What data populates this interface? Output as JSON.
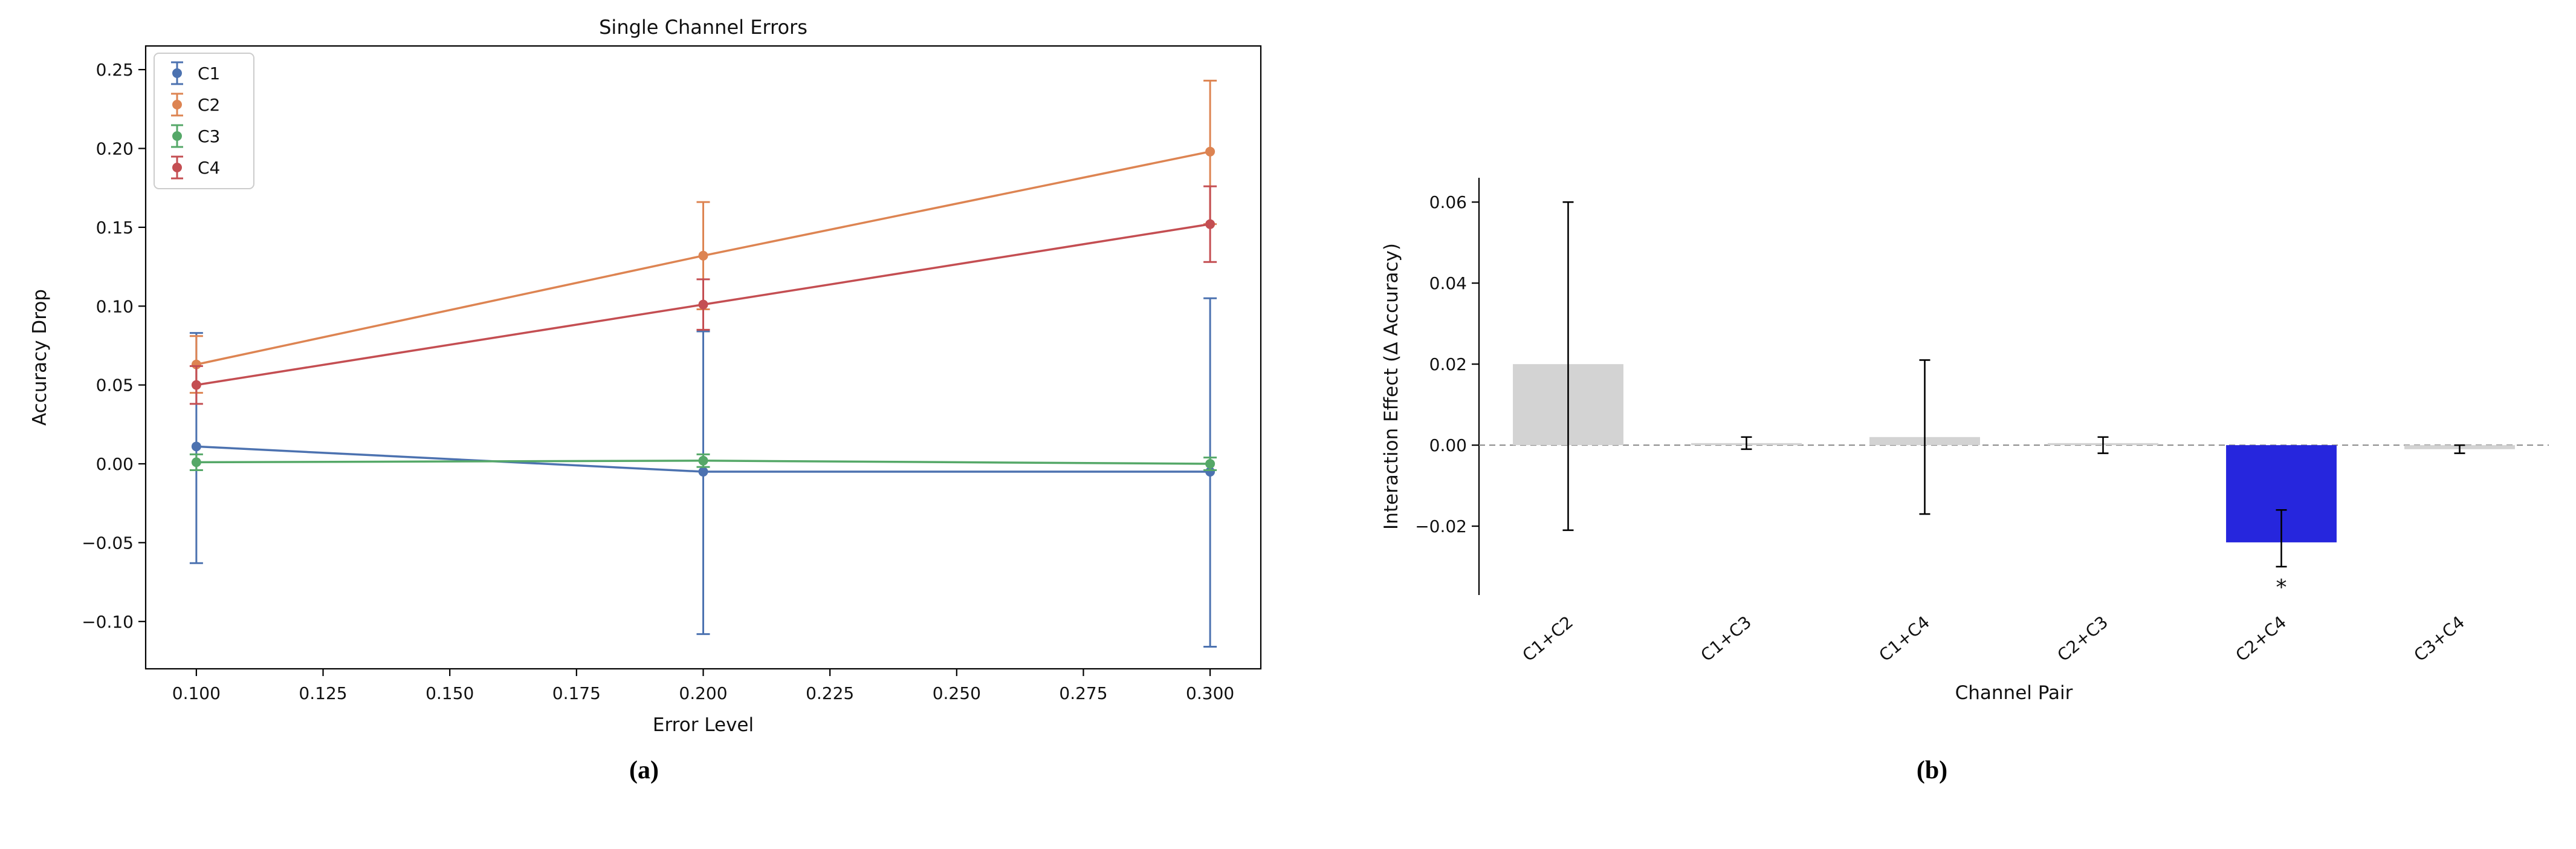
{
  "page": {
    "background": "#ffffff",
    "captions": {
      "a": "(a)",
      "b": "(b)"
    }
  },
  "chart_data": [
    {
      "id": "single-channel-errors",
      "type": "line",
      "title": "Single Channel Errors",
      "xlabel": "Error Level",
      "ylabel": "Accuracy Drop",
      "x": [
        0.1,
        0.2,
        0.3
      ],
      "xlim": [
        0.09,
        0.31
      ],
      "ylim": [
        -0.13,
        0.265
      ],
      "xticks": [
        0.1,
        0.125,
        0.15,
        0.175,
        0.2,
        0.225,
        0.25,
        0.275,
        0.3
      ],
      "xtick_labels": [
        "0.100",
        "0.125",
        "0.150",
        "0.175",
        "0.200",
        "0.225",
        "0.250",
        "0.275",
        "0.300"
      ],
      "yticks": [
        -0.1,
        -0.05,
        0.0,
        0.05,
        0.1,
        0.15,
        0.2,
        0.25
      ],
      "ytick_labels": [
        "−0.10",
        "−0.05",
        "0.00",
        "0.05",
        "0.10",
        "0.15",
        "0.20",
        "0.25"
      ],
      "legend_position": "upper left",
      "grid": false,
      "series": [
        {
          "name": "C1",
          "color": "#4C72B0",
          "values": [
            0.011,
            -0.005,
            -0.005
          ],
          "err_low": [
            -0.063,
            -0.108,
            -0.116
          ],
          "err_high": [
            0.083,
            0.084,
            0.105
          ]
        },
        {
          "name": "C2",
          "color": "#DD8452",
          "values": [
            0.063,
            0.132,
            0.198
          ],
          "err_low": [
            0.045,
            0.098,
            0.152
          ],
          "err_high": [
            0.081,
            0.166,
            0.243
          ]
        },
        {
          "name": "C3",
          "color": "#55A868",
          "values": [
            0.001,
            0.002,
            0.0
          ],
          "err_low": [
            -0.004,
            -0.002,
            -0.004
          ],
          "err_high": [
            0.006,
            0.006,
            0.004
          ]
        },
        {
          "name": "C4",
          "color": "#C44E52",
          "values": [
            0.05,
            0.101,
            0.152
          ],
          "err_low": [
            0.038,
            0.085,
            0.128
          ],
          "err_high": [
            0.062,
            0.117,
            0.176
          ]
        }
      ]
    },
    {
      "id": "interaction-effects",
      "type": "bar",
      "title": "",
      "xlabel": "Channel Pair",
      "ylabel": "Interaction Effect (Δ Accuracy)",
      "categories": [
        "C1+C2",
        "C1+C3",
        "C1+C4",
        "C2+C3",
        "C2+C4",
        "C3+C4"
      ],
      "values": [
        0.02,
        0.0005,
        0.002,
        0.0005,
        -0.024,
        -0.001
      ],
      "err_low": [
        -0.021,
        -0.001,
        -0.017,
        -0.002,
        -0.03,
        -0.002
      ],
      "err_high": [
        0.06,
        0.002,
        0.021,
        0.002,
        -0.016,
        0.0
      ],
      "colors": [
        "#d3d3d3",
        "#d3d3d3",
        "#d3d3d3",
        "#d3d3d3",
        "#2626dd",
        "#d3d3d3"
      ],
      "significance": [
        "",
        "",
        "",
        "",
        "*",
        ""
      ],
      "ylim": [
        -0.037,
        0.066
      ],
      "yticks": [
        -0.02,
        0.0,
        0.02,
        0.04,
        0.06
      ],
      "ytick_labels": [
        "−0.02",
        "0.00",
        "0.02",
        "0.04",
        "0.06"
      ],
      "zero_line": {
        "style": "dashed",
        "color": "#888888"
      },
      "error_bar_color": "#000000"
    }
  ]
}
